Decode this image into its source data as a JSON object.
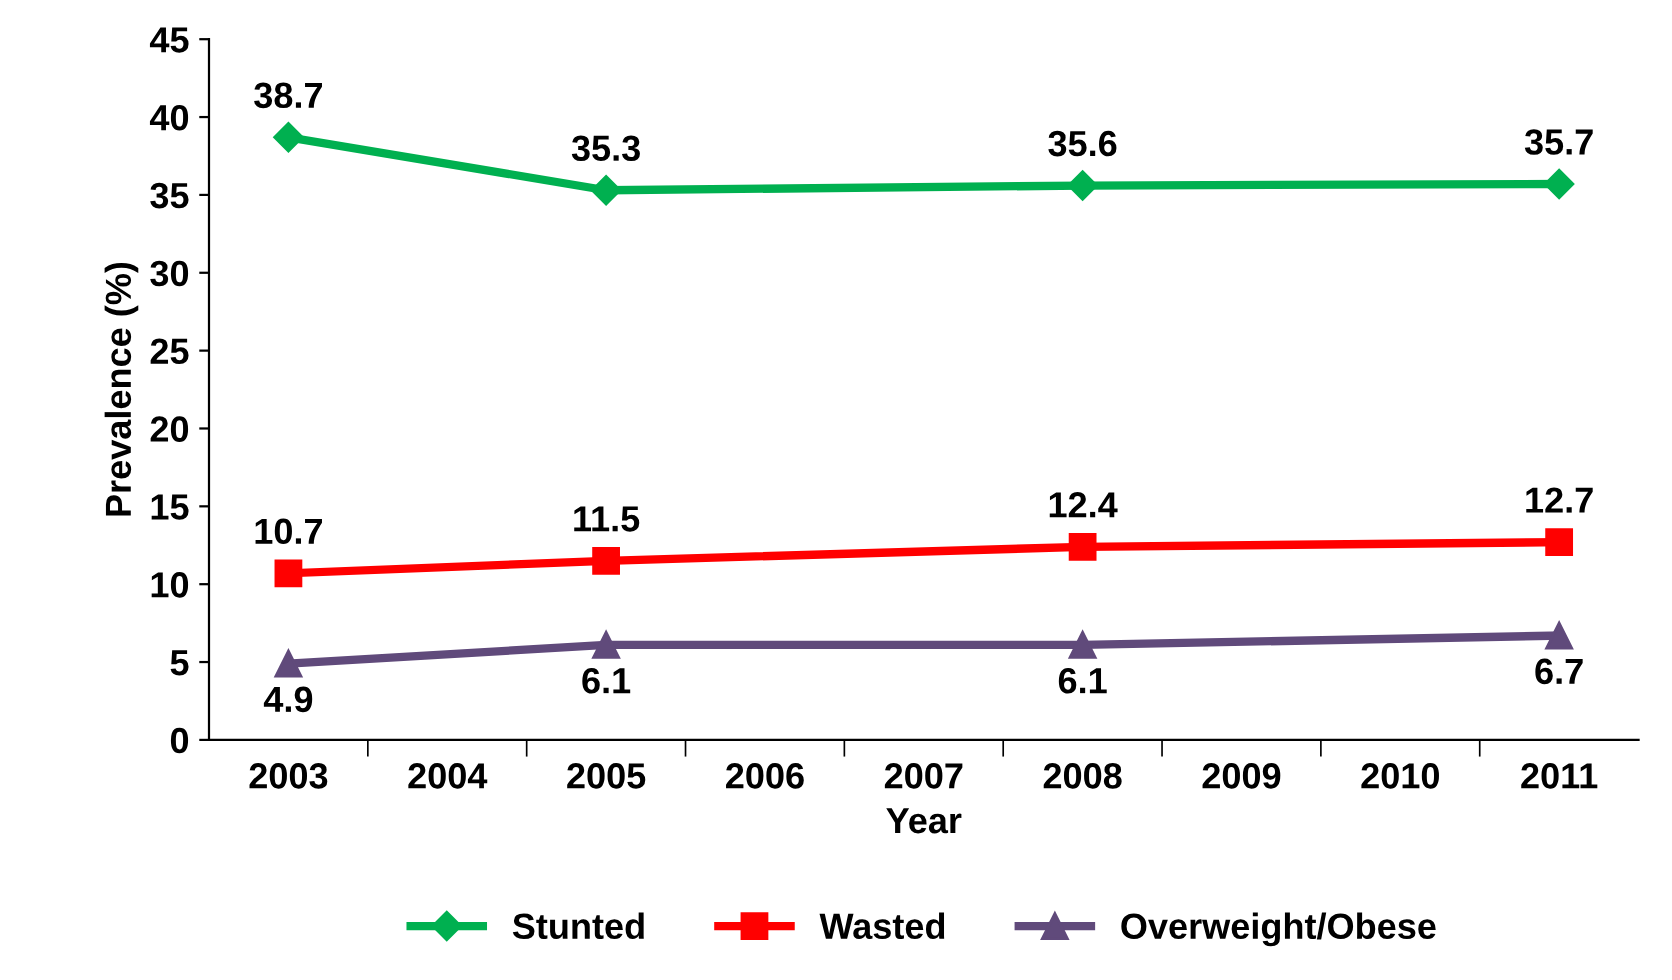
{
  "chart_data": {
    "type": "line",
    "xlabel": "Year",
    "ylabel": "Prevalence (%)",
    "categories": [
      "2003",
      "2004",
      "2005",
      "2006",
      "2007",
      "2008",
      "2009",
      "2010",
      "2011"
    ],
    "series": [
      {
        "name": "Stunted",
        "color": "#00b050",
        "marker": "diamond",
        "values": [
          38.7,
          null,
          35.3,
          null,
          null,
          35.6,
          null,
          null,
          35.7
        ]
      },
      {
        "name": "Wasted",
        "color": "#ff0000",
        "marker": "square",
        "values": [
          10.7,
          null,
          11.5,
          null,
          null,
          12.4,
          null,
          null,
          12.7
        ]
      },
      {
        "name": "Overweight/Obese",
        "color": "#604a7b",
        "marker": "triangle",
        "values": [
          4.9,
          null,
          6.1,
          null,
          null,
          6.1,
          null,
          null,
          6.7
        ]
      }
    ],
    "ylim": [
      0,
      45
    ],
    "yticks": [
      0,
      5,
      10,
      15,
      20,
      25,
      30,
      35,
      40,
      45
    ],
    "grid": false,
    "legend": "bottom",
    "data_labels": true,
    "line_style": "solid"
  }
}
